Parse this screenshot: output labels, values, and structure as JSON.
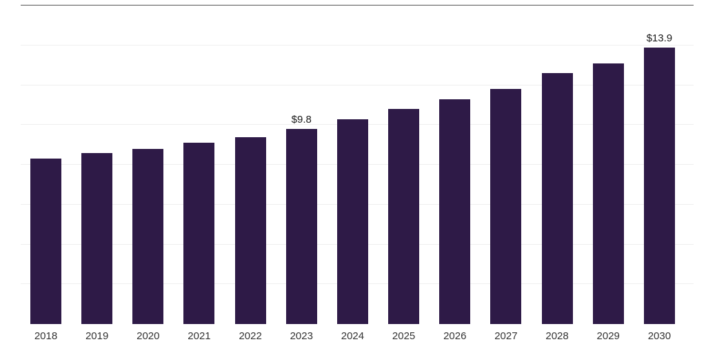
{
  "chart_data": {
    "type": "bar",
    "title": "",
    "categories": [
      "2018",
      "2019",
      "2020",
      "2021",
      "2022",
      "2023",
      "2024",
      "2025",
      "2026",
      "2027",
      "2028",
      "2029",
      "2030"
    ],
    "values": [
      8.3,
      8.6,
      8.8,
      9.1,
      9.4,
      9.8,
      10.3,
      10.8,
      11.3,
      11.8,
      12.6,
      13.1,
      13.9
    ],
    "data_labels": {
      "2023": "$9.8",
      "2030": "$13.9"
    },
    "bar_color": "#2e1a47",
    "label_color": "#1a1a1a",
    "axis_label_color": "#333333",
    "ylim": [
      0,
      16
    ],
    "grid_step": 2,
    "grid": true,
    "legend_position": "none",
    "xlabel": "",
    "ylabel": ""
  }
}
